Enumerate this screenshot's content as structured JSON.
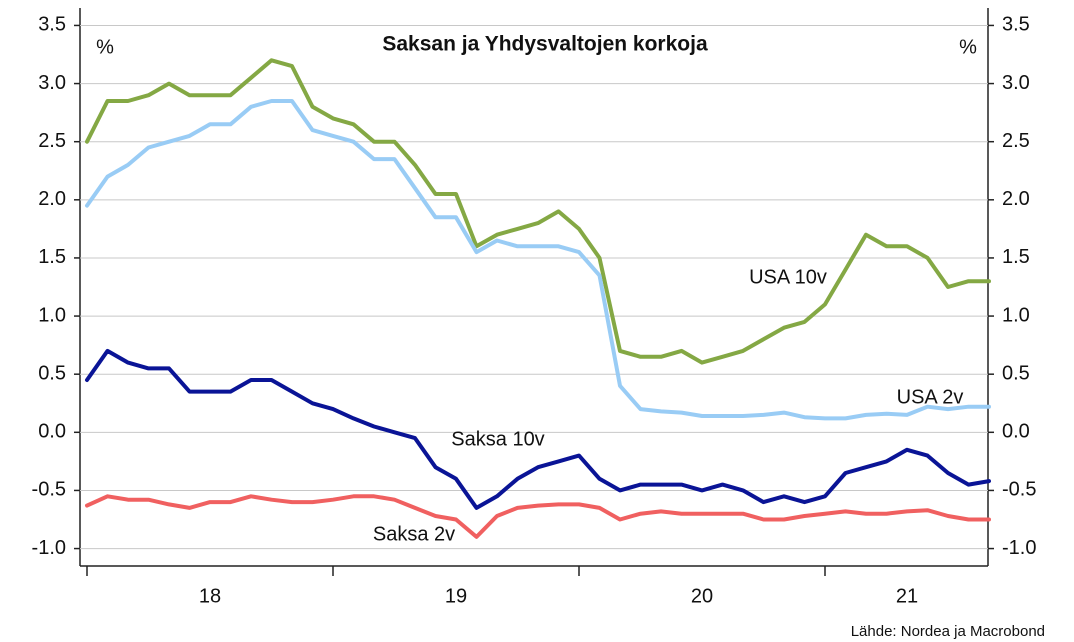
{
  "chart_data": {
    "type": "line",
    "title": "Saksan ja Yhdysvaltojen korkoja",
    "ylabel": "%",
    "y2label": "%",
    "source": "Lähde: Nordea ja Macrobond",
    "categories": [
      null,
      null,
      null,
      null,
      null,
      null,
      "18",
      null,
      null,
      null,
      null,
      null,
      null,
      null,
      null,
      null,
      null,
      null,
      "19",
      null,
      null,
      null,
      null,
      null,
      null,
      null,
      null,
      null,
      null,
      null,
      "20",
      null,
      null,
      null,
      null,
      null,
      null,
      null,
      null,
      null,
      "21",
      null,
      null,
      null,
      null
    ],
    "ylim": [
      -1.15,
      3.65
    ],
    "yticks": [
      3.5,
      {
        "value": 3,
        "label": "3.0"
      },
      2.5,
      {
        "value": 2,
        "label": "2.0"
      },
      1.5,
      {
        "value": 1,
        "label": "1.0"
      },
      0.5,
      {
        "value": 0,
        "label": "0.0"
      },
      -0.5,
      {
        "value": -1,
        "label": "-1.0"
      }
    ],
    "y2lim": [
      -1.15,
      3.65
    ],
    "y2ticks": [
      3.5,
      {
        "value": 3,
        "label": "3.0"
      },
      2.5,
      {
        "value": 2,
        "label": "2.0"
      },
      1.5,
      {
        "value": 1,
        "label": "1.0"
      },
      0.5,
      {
        "value": 0,
        "label": "0.0"
      },
      -0.5,
      {
        "value": -1,
        "label": "-1.0"
      }
    ],
    "grid": true,
    "series": [
      {
        "name": "USA 10v",
        "color": "#84a844",
        "values": [
          2.5,
          2.85,
          2.85,
          2.9,
          3.0,
          2.9,
          2.9,
          2.9,
          3.05,
          3.2,
          3.15,
          2.8,
          2.7,
          2.65,
          2.5,
          2.5,
          2.3,
          2.05,
          2.05,
          1.6,
          1.7,
          1.75,
          1.8,
          1.9,
          1.75,
          1.5,
          0.7,
          0.65,
          0.65,
          0.7,
          0.6,
          0.65,
          0.7,
          0.8,
          0.9,
          0.95,
          1.1,
          1.4,
          1.7,
          1.6,
          1.6,
          1.5,
          1.25,
          1.3,
          1.3
        ]
      },
      {
        "name": "USA 2v",
        "color": "#99ccf5",
        "values": [
          1.95,
          2.2,
          2.3,
          2.45,
          2.5,
          2.55,
          2.65,
          2.65,
          2.8,
          2.85,
          2.85,
          2.6,
          2.55,
          2.5,
          2.35,
          2.35,
          2.1,
          1.85,
          1.85,
          1.55,
          1.65,
          1.6,
          1.6,
          1.6,
          1.55,
          1.35,
          0.4,
          0.2,
          0.18,
          0.17,
          0.14,
          0.14,
          0.14,
          0.15,
          0.17,
          0.13,
          0.12,
          0.12,
          0.15,
          0.16,
          0.15,
          0.22,
          0.2,
          0.22,
          0.22
        ]
      },
      {
        "name": "Saksa 10v",
        "color": "#0a1496",
        "values": [
          0.45,
          0.7,
          0.6,
          0.55,
          0.55,
          0.35,
          0.35,
          0.35,
          0.45,
          0.45,
          0.35,
          0.25,
          0.2,
          0.12,
          0.05,
          0.0,
          -0.05,
          -0.3,
          -0.4,
          -0.65,
          -0.55,
          -0.4,
          -0.3,
          -0.25,
          -0.2,
          -0.4,
          -0.5,
          -0.45,
          -0.45,
          -0.45,
          -0.5,
          -0.45,
          -0.5,
          -0.6,
          -0.55,
          -0.6,
          -0.55,
          -0.35,
          -0.3,
          -0.25,
          -0.15,
          -0.2,
          -0.35,
          -0.45,
          -0.42
        ]
      },
      {
        "name": "Saksa 2v",
        "color": "#f06060",
        "values": [
          -0.63,
          -0.55,
          -0.58,
          -0.58,
          -0.62,
          -0.65,
          -0.6,
          -0.6,
          -0.55,
          -0.58,
          -0.6,
          -0.6,
          -0.58,
          -0.55,
          -0.55,
          -0.58,
          -0.65,
          -0.72,
          -0.75,
          -0.9,
          -0.72,
          -0.65,
          -0.63,
          -0.62,
          -0.62,
          -0.65,
          -0.75,
          -0.7,
          -0.68,
          -0.7,
          -0.7,
          -0.7,
          -0.7,
          -0.75,
          -0.75,
          -0.72,
          -0.7,
          -0.68,
          -0.7,
          -0.7,
          -0.68,
          -0.67,
          -0.72,
          -0.75,
          -0.75
        ]
      }
    ]
  }
}
